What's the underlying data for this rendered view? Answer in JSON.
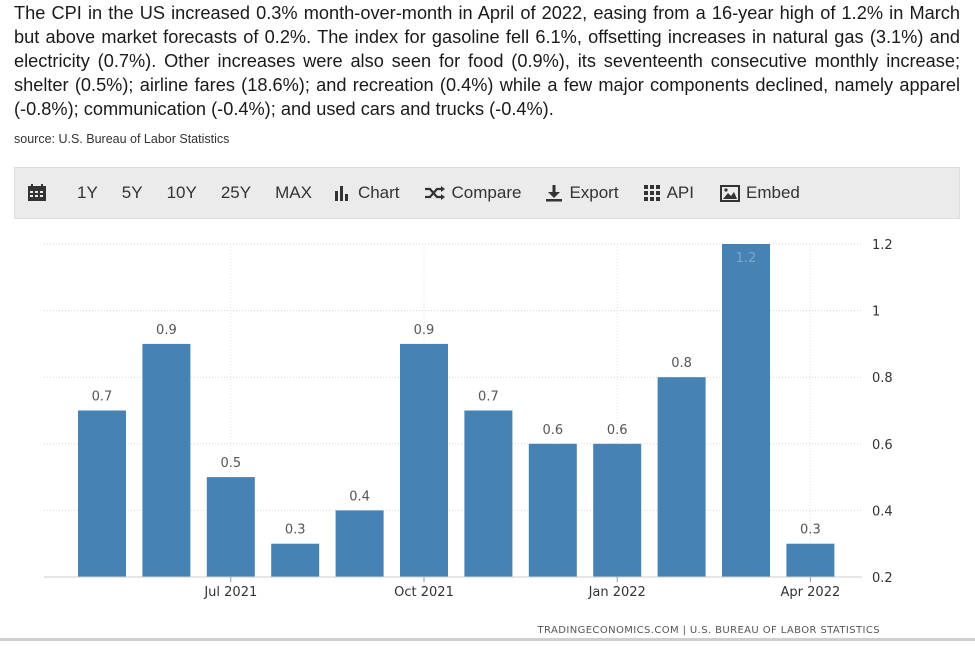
{
  "description": "The CPI in the US increased 0.3% month-over-month in April of 2022, easing from a 16-year high of 1.2% in March but above market forecasts of 0.2%. The index for gasoline fell 6.1%, offsetting increases in natural gas (3.1%) and electricity (0.7%). Other increases were also seen for food (0.9%), its seventeenth consecutive monthly increase; shelter (0.5%); airline fares (18.6%); and recreation (0.4%) while a few major components declined, namely apparel (-0.8%); communication (-0.4%); and used cars and trucks (-0.4%).",
  "source": "source: U.S. Bureau of Labor Statistics",
  "toolbar": {
    "calendar_icon": "calendar-icon",
    "ranges": [
      "1Y",
      "5Y",
      "10Y",
      "25Y",
      "MAX"
    ],
    "chart_label": "Chart",
    "compare_label": "Compare",
    "export_label": "Export",
    "api_label": "API",
    "embed_label": "Embed"
  },
  "chart_data": {
    "type": "bar",
    "categories": [
      "2021-05",
      "2021-06",
      "2021-07",
      "2021-08",
      "2021-09",
      "2021-10",
      "2021-11",
      "2021-12",
      "2022-01",
      "2022-02",
      "2022-03",
      "2022-04"
    ],
    "values": [
      0.7,
      0.9,
      0.5,
      0.3,
      0.4,
      0.9,
      0.7,
      0.6,
      0.6,
      0.8,
      1.2,
      0.3
    ],
    "data_labels": [
      "0.7",
      "0.9",
      "0.5",
      "0.3",
      "0.4",
      "0.9",
      "0.7",
      "0.6",
      "0.6",
      "0.8",
      "1.2",
      "0.3"
    ],
    "x_tick_labels": [
      {
        "category": "2021-07",
        "label": "Jul 2021"
      },
      {
        "category": "2021-10",
        "label": "Oct 2021"
      },
      {
        "category": "2022-01",
        "label": "Jan 2022"
      },
      {
        "category": "2022-04",
        "label": "Apr 2022"
      }
    ],
    "y_ticks": [
      0.2,
      0.4,
      0.6,
      0.8,
      1,
      1.2
    ],
    "y_tick_labels": [
      "0.2",
      "0.4",
      "0.6",
      "0.8",
      "1",
      "1.2"
    ],
    "ylim": [
      0.2,
      1.2
    ],
    "y_axis_position": "right",
    "grid": true,
    "bar_color": "#4682b4",
    "credit": "TRADINGECONOMICS.COM  |  U.S. BUREAU OF LABOR STATISTICS"
  }
}
